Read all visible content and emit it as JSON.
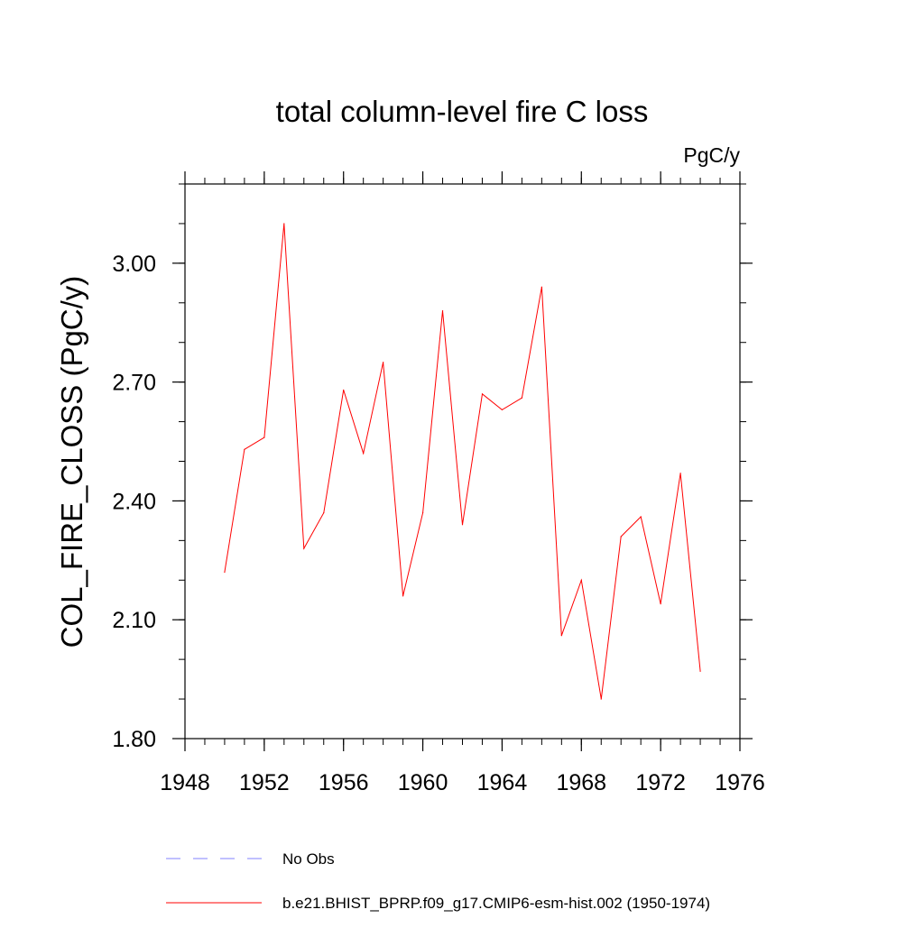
{
  "chart_data": {
    "type": "line",
    "title": "total column-level fire C loss",
    "units": "PgC/y",
    "xlabel": "",
    "ylabel": "COL_FIRE_CLOSS  (PgC/y)",
    "xlim": [
      1948,
      1976
    ],
    "ylim": [
      1.8,
      3.2
    ],
    "x_ticks": [
      1948,
      1952,
      1956,
      1960,
      1964,
      1968,
      1972,
      1976
    ],
    "x_tick_labels": [
      "1948",
      "1952",
      "1956",
      "1960",
      "1964",
      "1968",
      "1972",
      "1976"
    ],
    "x_minor_step": 1,
    "y_ticks": [
      1.8,
      2.1,
      2.4,
      2.7,
      3.0
    ],
    "y_tick_labels": [
      "1.80",
      "2.10",
      "2.40",
      "2.70",
      "3.00"
    ],
    "y_minor_step": 0.1,
    "grid": false,
    "legend_position": "bottom",
    "series": [
      {
        "name": "b.e21.BHIST_BPRP.f09_g17.CMIP6-esm-hist.002 (1950-1974)",
        "color": "#ff0000",
        "style": "solid",
        "x": [
          1950,
          1951,
          1952,
          1953,
          1954,
          1955,
          1956,
          1957,
          1958,
          1959,
          1960,
          1961,
          1962,
          1963,
          1964,
          1965,
          1966,
          1967,
          1968,
          1969,
          1970,
          1971,
          1972,
          1973,
          1974
        ],
        "values": [
          2.22,
          2.53,
          2.56,
          3.1,
          2.28,
          2.37,
          2.68,
          2.52,
          2.75,
          2.16,
          2.37,
          2.88,
          2.34,
          2.67,
          2.63,
          2.66,
          2.94,
          2.06,
          2.2,
          1.9,
          2.31,
          2.36,
          2.14,
          2.47,
          1.97
        ]
      }
    ],
    "legend": [
      {
        "label": "No Obs",
        "color": "#8080ff",
        "style": "dashed"
      },
      {
        "label": "b.e21.BHIST_BPRP.f09_g17.CMIP6-esm-hist.002 (1950-1974)",
        "color": "#ff0000",
        "style": "solid"
      }
    ]
  }
}
